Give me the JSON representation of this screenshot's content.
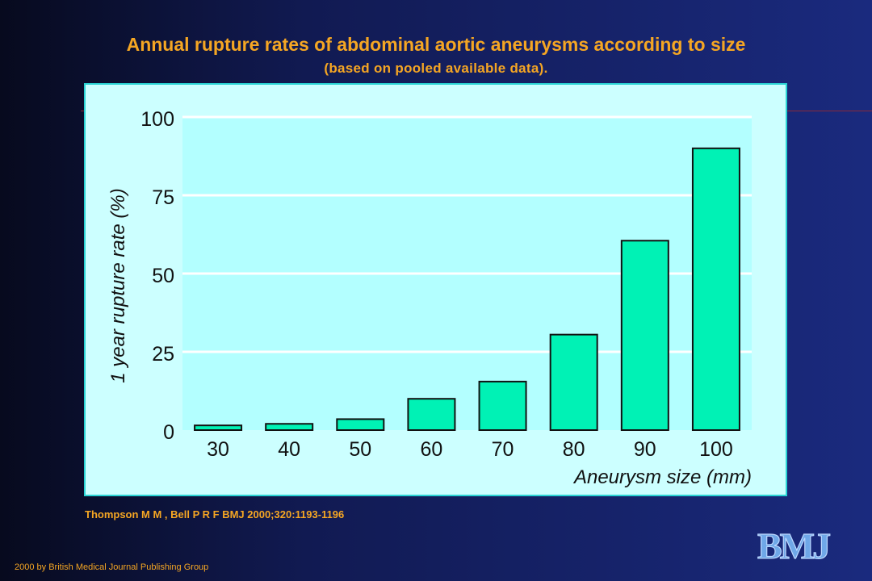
{
  "slide": {
    "title": "Annual rupture rates of abdominal aortic aneurysms according to size",
    "subtitle": "(based on pooled available data).",
    "citation": "Thompson M M , Bell P R F BMJ 2000;320:1193-1196",
    "copyright": "2000  by British Medical Journal Publishing Group",
    "logo_text": "BMJ"
  },
  "colors": {
    "bar_fill": "#00f2b5",
    "plot_bg": "#b3ffff",
    "panel_bg": "#ccffff",
    "title": "#f5a623"
  },
  "chart_data": {
    "type": "bar",
    "categories": [
      "30",
      "40",
      "50",
      "60",
      "70",
      "80",
      "90",
      "100"
    ],
    "values": [
      1.5,
      2,
      3.5,
      10,
      15.5,
      30.5,
      60.5,
      90
    ],
    "xlabel": "Aneurysm size (mm)",
    "ylabel": "1 year rupture rate (%)",
    "ylim": [
      0,
      100
    ],
    "yticks": [
      0,
      25,
      50,
      75,
      100
    ],
    "grid": true
  }
}
